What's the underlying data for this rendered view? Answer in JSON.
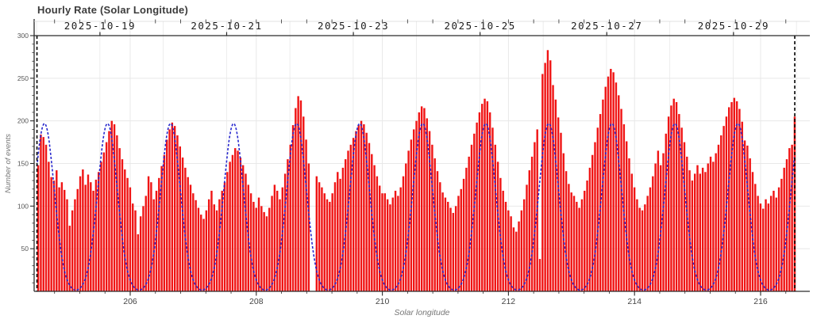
{
  "title": "Hourly Rate (Solar Longitude)",
  "chart_data": {
    "type": "bar",
    "title": "Hourly Rate (Solar Longitude)",
    "xlabel": "Solar longitude",
    "ylabel": "Number of events",
    "xlim": [
      204.48,
      216.78
    ],
    "ylim": [
      0,
      300
    ],
    "x_major_ticks": [
      206,
      208,
      210,
      212,
      214,
      216
    ],
    "x_minor_step": 0.4,
    "y_major_ticks": [
      50,
      100,
      150,
      200,
      250,
      300
    ],
    "y_minor_step": 10,
    "grid": true,
    "legend": "none",
    "top_axis": {
      "dates": [
        {
          "label": "2025-10-19",
          "lon": 205.52
        },
        {
          "label": "2025-10-21",
          "lon": 207.53
        },
        {
          "label": "2025-10-23",
          "lon": 209.54
        },
        {
          "label": "2025-10-25",
          "lon": 211.55
        },
        {
          "label": "2025-10-27",
          "lon": 213.56
        },
        {
          "label": "2025-10-29",
          "lon": 215.57
        }
      ],
      "day_gridline_start_lon": 204.515,
      "day_gridline_step": 1.0045
    },
    "bars": {
      "x_start": 204.521,
      "bin_width": 0.0416667,
      "note": "hourly event counts; 0 = missing bin",
      "values": [
        148,
        184,
        181,
        172,
        152,
        134,
        130,
        142,
        122,
        128,
        119,
        108,
        77,
        95,
        108,
        120,
        135,
        143,
        125,
        137,
        128,
        118,
        131,
        140,
        152,
        163,
        175,
        188,
        200,
        196,
        183,
        168,
        155,
        143,
        133,
        122,
        103,
        95,
        67,
        88,
        100,
        112,
        135,
        128,
        108,
        118,
        133,
        147,
        160,
        178,
        190,
        198,
        194,
        183,
        170,
        157,
        145,
        134,
        125,
        115,
        107,
        98,
        90,
        85,
        95,
        108,
        118,
        102,
        95,
        108,
        118,
        128,
        140,
        152,
        160,
        168,
        165,
        157,
        148,
        138,
        125,
        115,
        105,
        98,
        110,
        100,
        93,
        88,
        98,
        112,
        125,
        118,
        108,
        122,
        138,
        155,
        172,
        195,
        215,
        229,
        224,
        205,
        178,
        150,
        0,
        0,
        135,
        128,
        122,
        115,
        108,
        105,
        115,
        128,
        140,
        132,
        145,
        155,
        165,
        172,
        180,
        188,
        195,
        200,
        196,
        186,
        174,
        161,
        148,
        135,
        124,
        115,
        115,
        108,
        102,
        110,
        118,
        112,
        122,
        135,
        150,
        165,
        178,
        190,
        200,
        210,
        217,
        215,
        203,
        188,
        172,
        156,
        141,
        128,
        116,
        110,
        105,
        98,
        92,
        100,
        112,
        120,
        132,
        145,
        158,
        172,
        185,
        198,
        210,
        220,
        226,
        223,
        210,
        192,
        172,
        152,
        133,
        118,
        105,
        95,
        88,
        75,
        70,
        82,
        95,
        108,
        125,
        142,
        158,
        175,
        190,
        38,
        255,
        268,
        283,
        271,
        242,
        225,
        204,
        186,
        162,
        141,
        126,
        116,
        112,
        105,
        98,
        108,
        118,
        130,
        145,
        160,
        175,
        192,
        208,
        225,
        240,
        252,
        261,
        257,
        245,
        230,
        214,
        196,
        176,
        156,
        138,
        122,
        108,
        98,
        95,
        102,
        112,
        122,
        135,
        150,
        165,
        148,
        162,
        185,
        205,
        218,
        226,
        222,
        208,
        192,
        175,
        158,
        142,
        130,
        138,
        148,
        138,
        145,
        140,
        150,
        158,
        152,
        162,
        172,
        183,
        194,
        205,
        216,
        222,
        227,
        223,
        214,
        199,
        177,
        171,
        156,
        140,
        126,
        112,
        103,
        97,
        108,
        103,
        112,
        118,
        110,
        122,
        132,
        145,
        155,
        168,
        172,
        205
      ]
    },
    "fit_curve": {
      "model": "periodic-gaussian",
      "period": 1.0,
      "peak": 197,
      "peak_offset": 0.64,
      "sigma": 0.155
    },
    "data_boundaries_lon": [
      204.521,
      216.542
    ]
  },
  "colors": {
    "bar": "#f01414",
    "fit_curve": "#2727cd",
    "boundary_line": "#000000",
    "grid": "#e8e8e8",
    "axis": "#2b2b2b",
    "tick_label": "#555555",
    "x_tick_label": "#444444",
    "date_label": "#1c1c1c",
    "axis_label": "#777777",
    "title": "#3c3c3c",
    "background": "#ffffff"
  }
}
